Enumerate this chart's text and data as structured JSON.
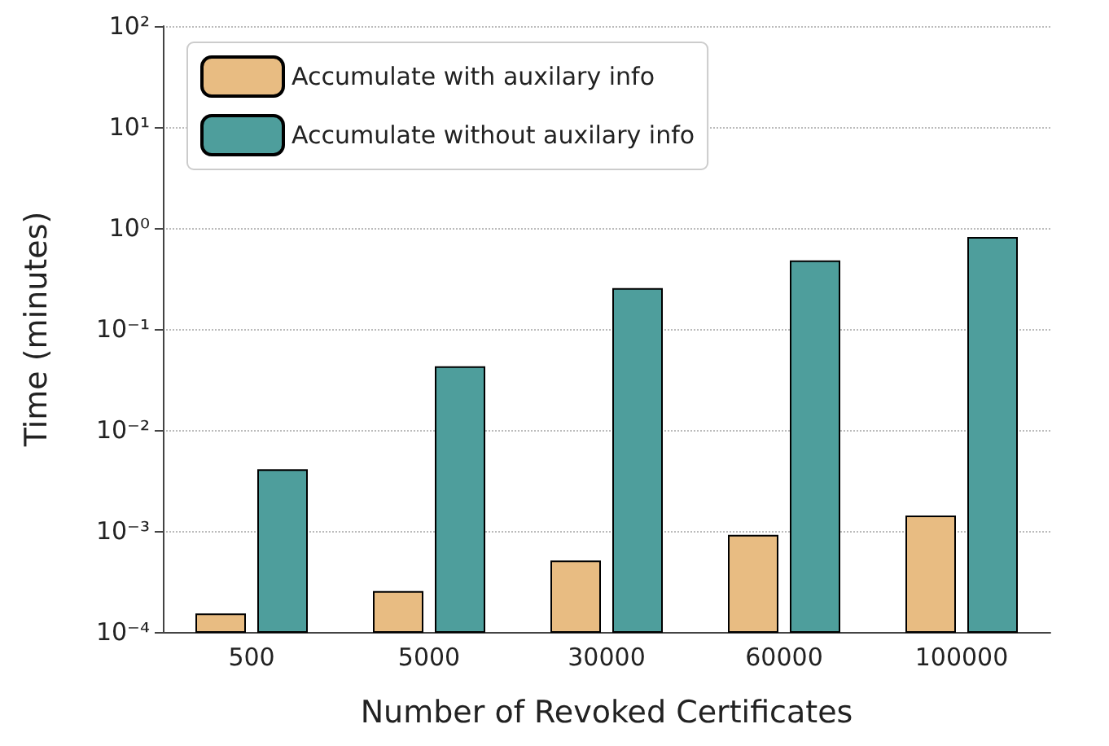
{
  "chart_data": {
    "type": "bar",
    "xlabel": "Number of Revoked Certificates",
    "ylabel": "Time (minutes)",
    "categories": [
      "500",
      "5000",
      "30000",
      "60000",
      "100000"
    ],
    "series": [
      {
        "name": "Accumulate with auxilary info",
        "color": "#e8bc82",
        "values": [
          0.00015,
          0.00025,
          0.0005,
          0.0009,
          0.0014
        ]
      },
      {
        "name": "Accumulate without auxilary info",
        "color": "#4e9e9c",
        "values": [
          0.004,
          0.042,
          0.25,
          0.47,
          0.8
        ]
      }
    ],
    "log": "y",
    "ylim": [
      0.0001,
      100
    ],
    "yticks": [
      {
        "value": 0.0001,
        "label": "10⁻⁴"
      },
      {
        "value": 0.001,
        "label": "10⁻³"
      },
      {
        "value": 0.01,
        "label": "10⁻²"
      },
      {
        "value": 0.1,
        "label": "10⁻¹"
      },
      {
        "value": 1,
        "label": "10⁰"
      },
      {
        "value": 10,
        "label": "10¹"
      },
      {
        "value": 100,
        "label": "10²"
      }
    ],
    "grid": "y",
    "legend": "top left"
  }
}
